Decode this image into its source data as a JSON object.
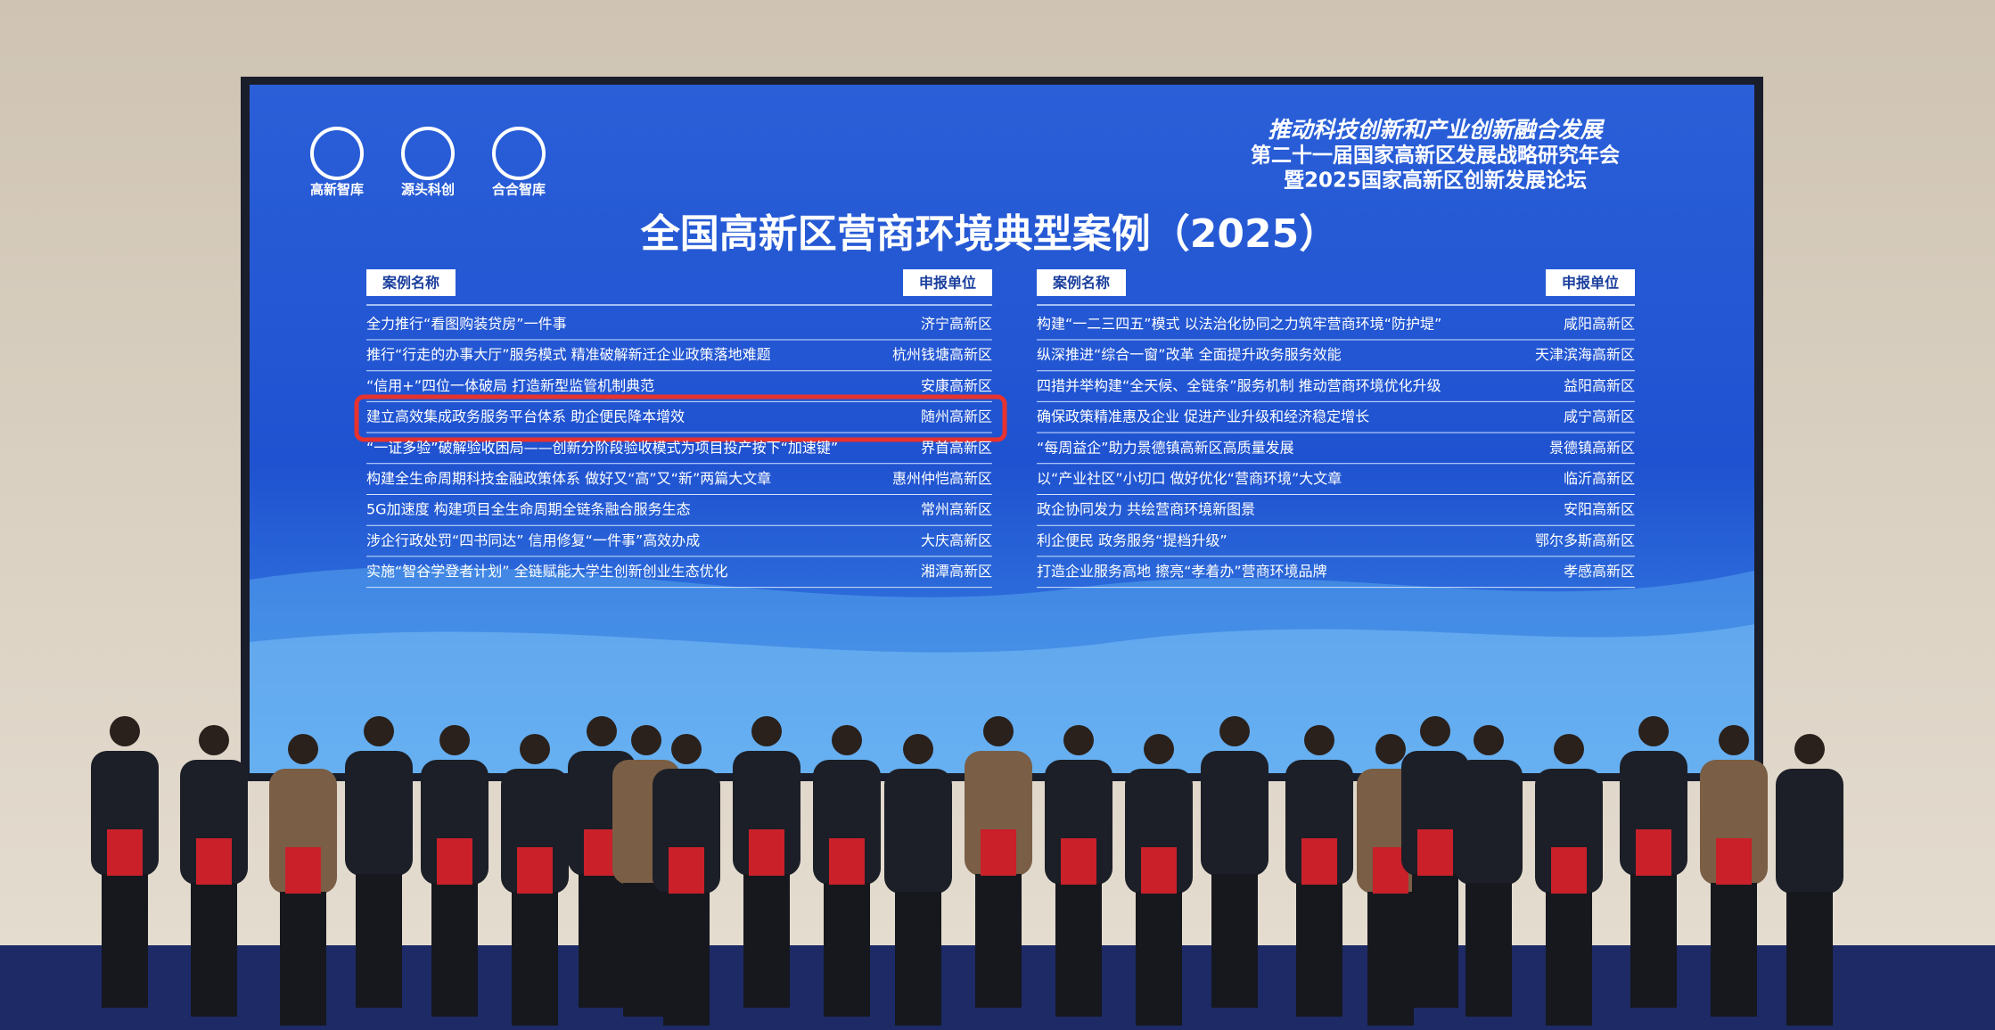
{
  "screen": {
    "logos": [
      "高新智库",
      "源头科创",
      "合合智库"
    ],
    "header": {
      "line1": "推动科技创新和产业创新融合发展",
      "line2": "第二十一届国家高新区发展战略研究年会",
      "line3": "暨2025国家高新区创新发展论坛"
    },
    "title": "全国高新区营商环境典型案例（2025）",
    "left_table": {
      "columns": [
        "案例名称",
        "申报单位"
      ],
      "rows": [
        [
          "全力推行“看图购装贷房”一件事",
          "济宁高新区"
        ],
        [
          "推行“行走的办事大厅”服务模式 精准破解新迁企业政策落地难题",
          "杭州钱塘高新区"
        ],
        [
          "“信用+”四位一体破局 打造新型监管机制典范",
          "安康高新区"
        ],
        [
          "建立高效集成政务服务平台体系 助企便民降本增效",
          "随州高新区"
        ],
        [
          "“一证多验”破解验收困局——创新分阶段验收模式为项目投产按下“加速键”",
          "界首高新区"
        ],
        [
          "构建全生命周期科技金融政策体系 做好又“高”又“新”两篇大文章",
          "惠州仲恺高新区"
        ],
        [
          "5G加速度 构建项目全生命周期全链条融合服务生态",
          "常州高新区"
        ],
        [
          "涉企行政处罚“四书同达” 信用修复“一件事”高效办成",
          "大庆高新区"
        ],
        [
          "实施“智谷学登者计划” 全链赋能大学生创新创业生态优化",
          "湘潭高新区"
        ]
      ]
    },
    "right_table": {
      "columns": [
        "案例名称",
        "申报单位"
      ],
      "rows": [
        [
          "构建“一二三四五”模式 以法治化协同之力筑牢营商环境“防护堤”",
          "咸阳高新区"
        ],
        [
          "纵深推进“综合一窗”改革 全面提升政务服务效能",
          "天津滨海高新区"
        ],
        [
          "四措并举构建“全天候、全链条”服务机制 推动营商环境优化升级",
          "益阳高新区"
        ],
        [
          "确保政策精准惠及企业 促进产业升级和经济稳定增长",
          "咸宁高新区"
        ],
        [
          "“每周益企”助力景德镇高新区高质量发展",
          "景德镇高新区"
        ],
        [
          "以“产业社区”小切口 做好优化“营商环境”大文章",
          "临沂高新区"
        ],
        [
          "政企协同发力 共绘营商环境新图景",
          "安阳高新区"
        ],
        [
          "利企便民 政务服务“提档升级”",
          "鄂尔多斯高新区"
        ],
        [
          "打造企业服务高地 擦亮“孝着办”营商环境品牌",
          "孝感高新区"
        ]
      ]
    }
  }
}
